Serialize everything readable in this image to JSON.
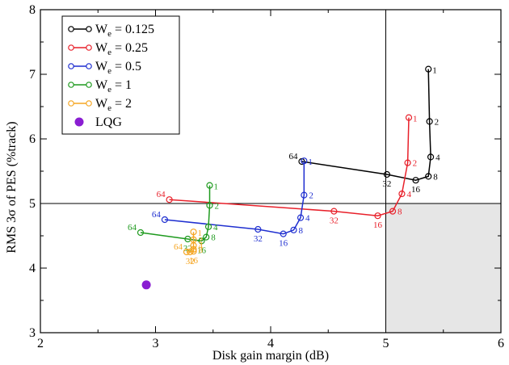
{
  "chart_data": {
    "type": "line",
    "xlabel": "Disk gain margin (dB)",
    "ylabel": "RMS 3σ  of PES (%track)",
    "xlim": [
      2,
      6
    ],
    "ylim": [
      3,
      8
    ],
    "x_ticks": [
      "2",
      "3",
      "4",
      "5",
      "6"
    ],
    "y_ticks": [
      "3",
      "4",
      "5",
      "6",
      "7",
      "8"
    ],
    "grid": false,
    "legend_position": "top-left",
    "reference_lines": {
      "x": 5,
      "y": 5
    },
    "shaded_region": {
      "x": [
        5,
        6
      ],
      "y": [
        3,
        5
      ],
      "color": "#e6e6e6"
    },
    "series": [
      {
        "name": "W",
        "subscript": "e",
        "value_text": " = 0.125",
        "color": "#000000",
        "points": [
          {
            "x": 5.37,
            "y": 7.08,
            "label": "1"
          },
          {
            "x": 5.38,
            "y": 6.27,
            "label": "2"
          },
          {
            "x": 5.39,
            "y": 5.72,
            "label": "4"
          },
          {
            "x": 5.37,
            "y": 5.42,
            "label": "8"
          },
          {
            "x": 5.26,
            "y": 5.36,
            "label": "16"
          },
          {
            "x": 5.01,
            "y": 5.45,
            "label": "32"
          },
          {
            "x": 4.27,
            "y": 5.65,
            "label": "64"
          }
        ]
      },
      {
        "name": "W",
        "subscript": "e",
        "value_text": " = 0.25",
        "color": "#e8202a",
        "points": [
          {
            "x": 5.2,
            "y": 6.33,
            "label": "1"
          },
          {
            "x": 5.19,
            "y": 5.63,
            "label": "2"
          },
          {
            "x": 5.14,
            "y": 5.15,
            "label": "4"
          },
          {
            "x": 5.06,
            "y": 4.88,
            "label": "8"
          },
          {
            "x": 4.93,
            "y": 4.81,
            "label": "16"
          },
          {
            "x": 4.55,
            "y": 4.88,
            "label": "32"
          },
          {
            "x": 3.12,
            "y": 5.06,
            "label": "64"
          }
        ]
      },
      {
        "name": "W",
        "subscript": "e",
        "value_text": " = 0.5",
        "color": "#1f2fd0",
        "points": [
          {
            "x": 4.29,
            "y": 5.66,
            "label": "1"
          },
          {
            "x": 4.29,
            "y": 5.13,
            "label": "2"
          },
          {
            "x": 4.26,
            "y": 4.78,
            "label": "4"
          },
          {
            "x": 4.2,
            "y": 4.59,
            "label": "8"
          },
          {
            "x": 4.11,
            "y": 4.53,
            "label": "16"
          },
          {
            "x": 3.89,
            "y": 4.6,
            "label": "32"
          },
          {
            "x": 3.08,
            "y": 4.75,
            "label": "64"
          }
        ]
      },
      {
        "name": "W",
        "subscript": "e",
        "value_text": " = 1",
        "color": "#1e9a1e",
        "points": [
          {
            "x": 3.47,
            "y": 5.28,
            "label": "1"
          },
          {
            "x": 3.47,
            "y": 4.97,
            "label": "2"
          },
          {
            "x": 3.46,
            "y": 4.64,
            "label": "4"
          },
          {
            "x": 3.44,
            "y": 4.48,
            "label": "8"
          },
          {
            "x": 3.4,
            "y": 4.42,
            "label": "16"
          },
          {
            "x": 3.28,
            "y": 4.45,
            "label": "32"
          },
          {
            "x": 2.87,
            "y": 4.55,
            "label": "64"
          }
        ]
      },
      {
        "name": "W",
        "subscript": "e",
        "value_text": " = 2",
        "color": "#f5a623",
        "points": [
          {
            "x": 3.33,
            "y": 4.56,
            "label": "1"
          },
          {
            "x": 3.33,
            "y": 4.44,
            "label": "2"
          },
          {
            "x": 3.33,
            "y": 4.35,
            "label": "4"
          },
          {
            "x": 3.33,
            "y": 4.29,
            "label": "8"
          },
          {
            "x": 3.33,
            "y": 4.26,
            "label": "16"
          },
          {
            "x": 3.3,
            "y": 4.25,
            "label": "32"
          },
          {
            "x": 3.27,
            "y": 4.25,
            "label": "64"
          }
        ]
      }
    ],
    "lqg": {
      "name": "LQG",
      "color": "#8a1ed2",
      "x": 2.92,
      "y": 3.74
    }
  }
}
